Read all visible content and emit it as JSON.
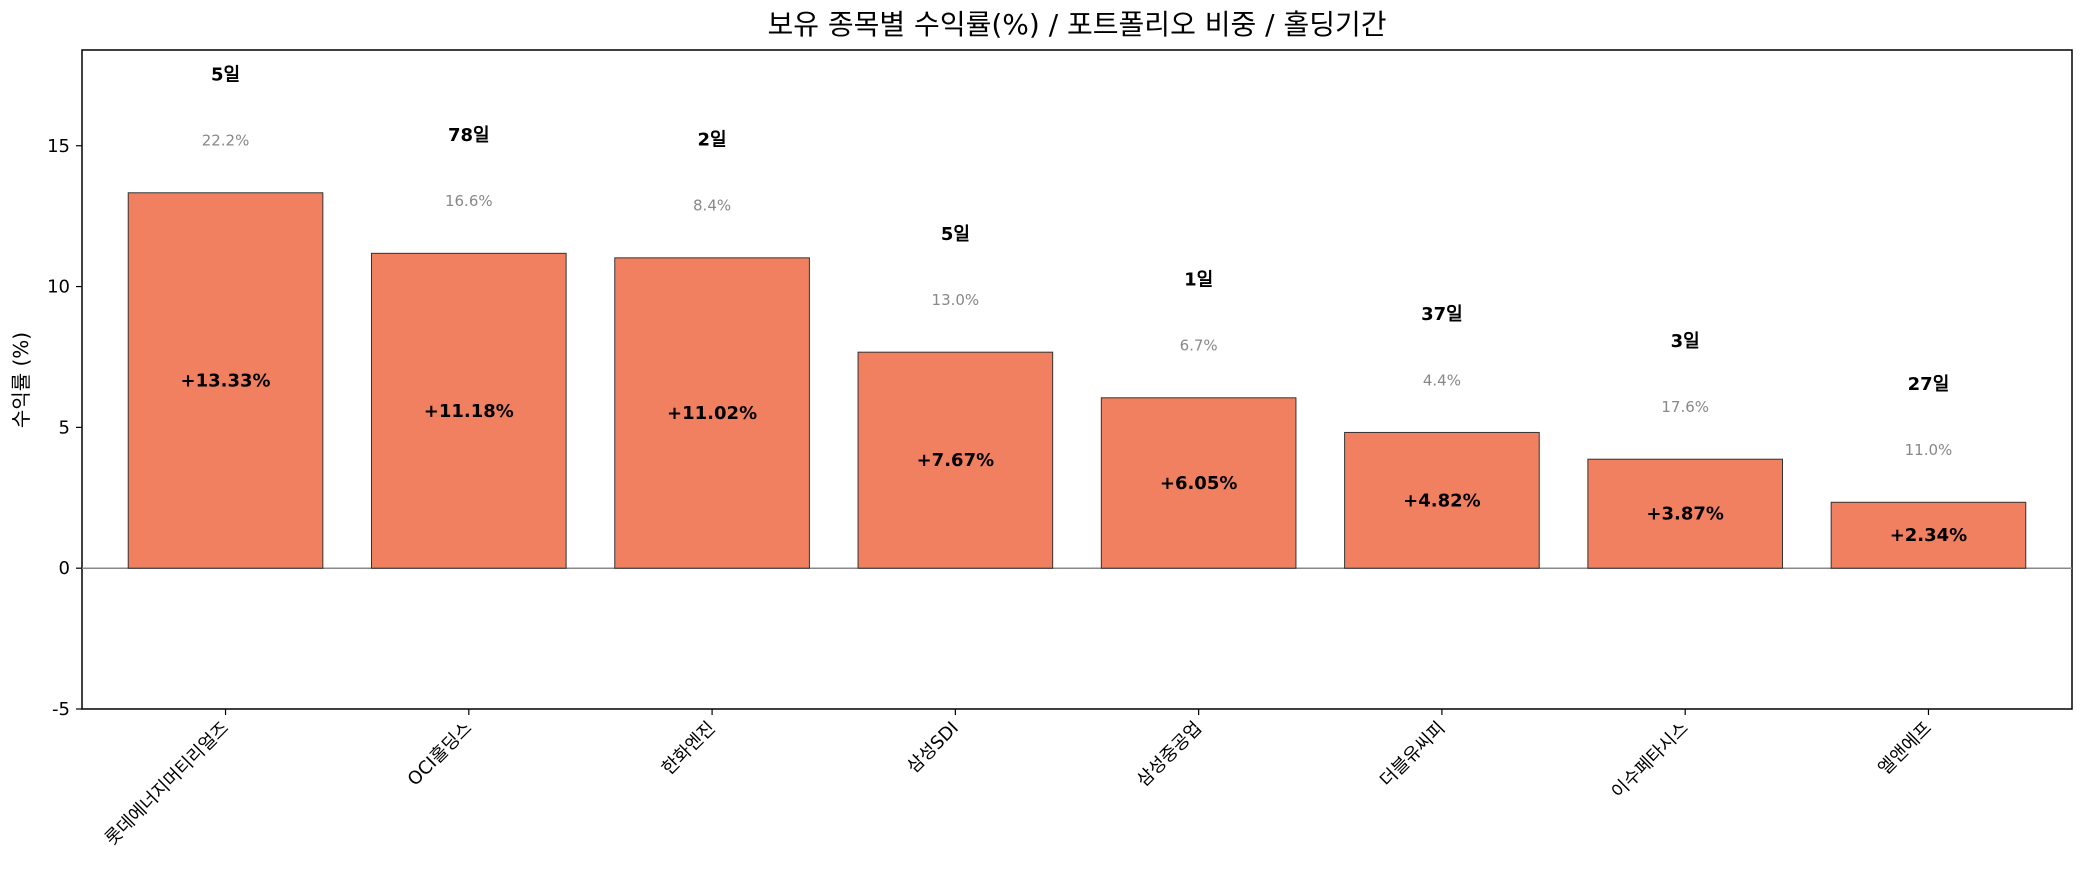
{
  "chart_data": {
    "type": "bar",
    "title": "보유 종목별 수익률(%) / 포트폴리오 비중 / 홀딩기간",
    "xlabel": "",
    "ylabel": "수익률 (%)",
    "ylim": [
      -5,
      18.4
    ],
    "yticks": [
      -5,
      0,
      5,
      10,
      15
    ],
    "grid": false,
    "legend": "none",
    "bar_color": "#f08060",
    "bar_edge_color": "#333333",
    "zero_line_color": "#888888",
    "categories": [
      "롯데에너지머티리얼즈",
      "OCI홀딩스",
      "한화엔진",
      "삼성SDI",
      "삼성중공업",
      "더블유씨피",
      "이수페타시스",
      "엘앤에프"
    ],
    "values": [
      13.33,
      11.18,
      11.02,
      7.67,
      6.05,
      4.82,
      3.87,
      2.34
    ],
    "value_labels": [
      "+13.33%",
      "+11.18%",
      "+11.02%",
      "+7.67%",
      "+6.05%",
      "+4.82%",
      "+3.87%",
      "+2.34%"
    ],
    "portfolio_weights": [
      "22.2%",
      "16.6%",
      "8.4%",
      "13.0%",
      "6.7%",
      "4.4%",
      "17.6%",
      "11.0%"
    ],
    "holding_days": [
      "5일",
      "78일",
      "2일",
      "5일",
      "1일",
      "37일",
      "3일",
      "27일"
    ]
  }
}
